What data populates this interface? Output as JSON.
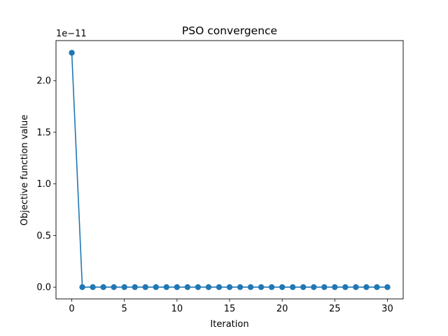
{
  "chart_data": {
    "type": "line",
    "title": "PSO convergence",
    "xlabel": "Iteration",
    "ylabel": "Objective function value",
    "y_offset_label": "1e−11",
    "xlim": [
      -1.5,
      31.5
    ],
    "ylim": [
      -0.114,
      2.388
    ],
    "xticks": [
      0,
      5,
      10,
      15,
      20,
      25,
      30
    ],
    "yticks": [
      0.0,
      0.5,
      1.0,
      1.5,
      2.0
    ],
    "ytick_labels": [
      "0.0",
      "0.5",
      "1.0",
      "1.5",
      "2.0"
    ],
    "grid": false,
    "series": [
      {
        "color": "#1f77b4",
        "marker": "circle",
        "x": [
          0,
          1,
          2,
          3,
          4,
          5,
          6,
          7,
          8,
          9,
          10,
          11,
          12,
          13,
          14,
          15,
          16,
          17,
          18,
          19,
          20,
          21,
          22,
          23,
          24,
          25,
          26,
          27,
          28,
          29,
          30
        ],
        "y": [
          2.27,
          0,
          0,
          0,
          0,
          0,
          0,
          0,
          0,
          0,
          0,
          0,
          0,
          0,
          0,
          0,
          0,
          0,
          0,
          0,
          0,
          0,
          0,
          0,
          0,
          0,
          0,
          0,
          0,
          0,
          0
        ]
      }
    ]
  }
}
